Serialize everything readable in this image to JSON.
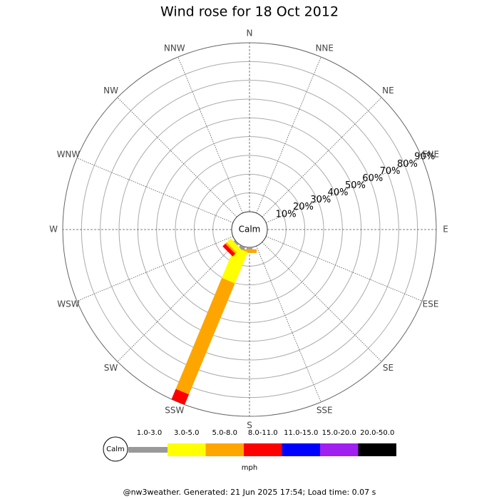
{
  "chart_data": {
    "type": "windrose",
    "title": "Wind rose for 18 Oct 2012",
    "calm_label": "Calm",
    "categories": [
      "N",
      "NNE",
      "NE",
      "ENE",
      "E",
      "ESE",
      "SE",
      "SSE",
      "S",
      "SSW",
      "SW",
      "WSW",
      "W",
      "WNW",
      "NW",
      "NNW"
    ],
    "series": [
      {
        "name": "1.0-3.0",
        "color": "#999999",
        "values": [
          0,
          0,
          0,
          0,
          0,
          0,
          0,
          0,
          1,
          2,
          1,
          0,
          0,
          0,
          0,
          0
        ]
      },
      {
        "name": "3.0-5.0",
        "color": "#ffff00",
        "values": [
          0,
          0,
          0,
          0,
          0,
          0,
          0,
          0,
          0,
          18,
          3,
          0,
          0,
          0,
          0,
          0
        ]
      },
      {
        "name": "5.0-8.0",
        "color": "#ffa500",
        "values": [
          0,
          0,
          0,
          0,
          0,
          0,
          0,
          0,
          2,
          64,
          1,
          0,
          0,
          0,
          0,
          0
        ]
      },
      {
        "name": "8.0-11.0",
        "color": "#ff0000",
        "values": [
          0,
          0,
          0,
          0,
          0,
          0,
          0,
          0,
          0,
          6,
          2,
          0,
          0,
          0,
          0,
          0
        ]
      },
      {
        "name": "11.0-15.0",
        "color": "#0000ff",
        "values": [
          0,
          0,
          0,
          0,
          0,
          0,
          0,
          0,
          0,
          0,
          0,
          0,
          0,
          0,
          0,
          0
        ]
      },
      {
        "name": "15.0-20.0",
        "color": "#a020f0",
        "values": [
          0,
          0,
          0,
          0,
          0,
          0,
          0,
          0,
          0,
          0,
          0,
          0,
          0,
          0,
          0,
          0
        ]
      },
      {
        "name": "20.0-50.0",
        "color": "#000000",
        "values": [
          0,
          0,
          0,
          0,
          0,
          0,
          0,
          0,
          0,
          0,
          0,
          0,
          0,
          0,
          0,
          0
        ]
      }
    ],
    "ylim": [
      0,
      90
    ],
    "yticks": [
      {
        "value": 10,
        "label": "10%"
      },
      {
        "value": 20,
        "label": "20%"
      },
      {
        "value": 30,
        "label": "30%"
      },
      {
        "value": 40,
        "label": "40%"
      },
      {
        "value": 50,
        "label": "50%"
      },
      {
        "value": 60,
        "label": "60%"
      },
      {
        "value": 70,
        "label": "70%"
      },
      {
        "value": 80,
        "label": "80%"
      },
      {
        "value": 90,
        "label": "90%"
      }
    ],
    "unit_label": "mph",
    "footer": "@nw3weather. Generated: 21 Jun 2025 17:54; Load time: 0.07 s"
  }
}
